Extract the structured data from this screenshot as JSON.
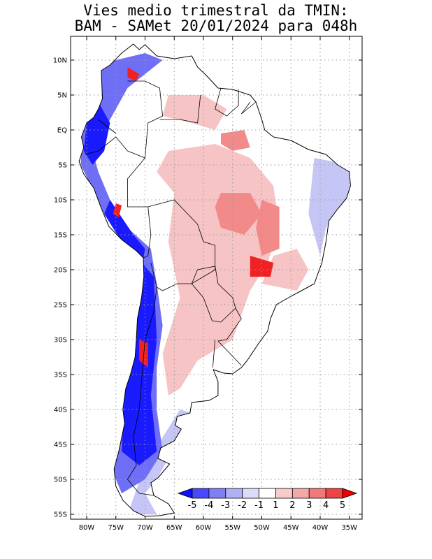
{
  "header": {
    "title_line1": "Vies medio trimestral da TMIN:",
    "title_line2": "BAM - SAMet 20/01/2024  para 048h"
  },
  "map": {
    "lon_range": [
      -84,
      -34
    ],
    "lat_range": [
      -56,
      13
    ],
    "lat_labels": [
      {
        "lat": 10,
        "text": "10N"
      },
      {
        "lat": 5,
        "text": "5N"
      },
      {
        "lat": 0,
        "text": "EQ"
      },
      {
        "lat": -5,
        "text": "5S"
      },
      {
        "lat": -10,
        "text": "10S"
      },
      {
        "lat": -15,
        "text": "15S"
      },
      {
        "lat": -20,
        "text": "20S"
      },
      {
        "lat": -25,
        "text": "25S"
      },
      {
        "lat": -30,
        "text": "30S"
      },
      {
        "lat": -35,
        "text": "35S"
      },
      {
        "lat": -40,
        "text": "40S"
      },
      {
        "lat": -45,
        "text": "45S"
      },
      {
        "lat": -50,
        "text": "50S"
      },
      {
        "lat": -55,
        "text": "55S"
      }
    ],
    "lon_labels": [
      {
        "lon": -80,
        "text": "80W"
      },
      {
        "lon": -75,
        "text": "75W"
      },
      {
        "lon": -70,
        "text": "70W"
      },
      {
        "lon": -65,
        "text": "65W"
      },
      {
        "lon": -60,
        "text": "60W"
      },
      {
        "lon": -55,
        "text": "55W"
      },
      {
        "lon": -50,
        "text": "50W"
      },
      {
        "lon": -45,
        "text": "45W"
      },
      {
        "lon": -40,
        "text": "40W"
      },
      {
        "lon": -35,
        "text": "35W"
      }
    ],
    "grid": true,
    "colors": {
      "strong_blue": "#1a1aff",
      "mid_blue": "#6f6ff5",
      "light_blue": "#c6c6f6",
      "light_red": "#f6c4c4",
      "mid_red": "#f28a8a",
      "strong_red": "#ee2222"
    }
  },
  "colorbar": {
    "labels": [
      "-5",
      "-4",
      "-3",
      "-2",
      "-1",
      "1",
      "2",
      "3",
      "4",
      "5"
    ],
    "colors": [
      "#1010ff",
      "#4848ff",
      "#7f7ff6",
      "#b0b0f4",
      "#dcdcfa",
      "#ffffff",
      "#f8cccc",
      "#f4a8a8",
      "#f07a7a",
      "#ee4444",
      "#ee0000"
    ]
  }
}
